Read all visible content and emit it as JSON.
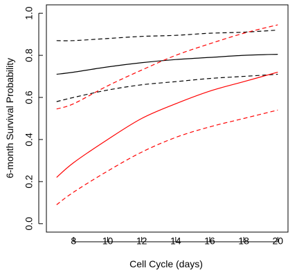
{
  "chart_data": {
    "type": "line",
    "title": "",
    "xlabel": "Cell Cycle (days)",
    "ylabel": "6-month Survival Probability",
    "xlim": [
      6.4,
      20.6
    ],
    "ylim": [
      -0.04,
      1.04
    ],
    "xticks": [
      8,
      10,
      12,
      14,
      16,
      18,
      20
    ],
    "yticks": [
      0.0,
      0.2,
      0.4,
      0.6,
      0.8,
      1.0
    ],
    "xtick_labels": [
      "8",
      "10",
      "12",
      "14",
      "16",
      "18",
      "20"
    ],
    "ytick_labels": [
      "0.0",
      "0.2",
      "0.4",
      "0.6",
      "0.8",
      "1.0"
    ],
    "grid": false,
    "legend": "none",
    "series": [
      {
        "key": "black_estimate",
        "color": "#000000",
        "style": "solid",
        "points": [
          [
            7,
            0.71
          ],
          [
            8,
            0.72
          ],
          [
            10,
            0.745
          ],
          [
            12,
            0.765
          ],
          [
            14,
            0.78
          ],
          [
            16,
            0.79
          ],
          [
            18,
            0.8
          ],
          [
            20,
            0.805
          ]
        ]
      },
      {
        "key": "black_upper",
        "color": "#000000",
        "style": "dashed",
        "points": [
          [
            7,
            0.87
          ],
          [
            8,
            0.87
          ],
          [
            10,
            0.88
          ],
          [
            12,
            0.89
          ],
          [
            14,
            0.895
          ],
          [
            16,
            0.905
          ],
          [
            18,
            0.91
          ],
          [
            20,
            0.92
          ]
        ]
      },
      {
        "key": "black_lower",
        "color": "#000000",
        "style": "dashed",
        "points": [
          [
            7,
            0.58
          ],
          [
            8,
            0.6
          ],
          [
            10,
            0.635
          ],
          [
            12,
            0.66
          ],
          [
            14,
            0.675
          ],
          [
            16,
            0.69
          ],
          [
            18,
            0.7
          ],
          [
            20,
            0.71
          ]
        ]
      },
      {
        "key": "red_estimate",
        "color": "#ff0000",
        "style": "solid",
        "points": [
          [
            7,
            0.22
          ],
          [
            8,
            0.29
          ],
          [
            10,
            0.4
          ],
          [
            12,
            0.5
          ],
          [
            14,
            0.57
          ],
          [
            16,
            0.63
          ],
          [
            18,
            0.675
          ],
          [
            20,
            0.72
          ]
        ]
      },
      {
        "key": "red_upper",
        "color": "#ff0000",
        "style": "dashed",
        "points": [
          [
            7,
            0.545
          ],
          [
            8,
            0.57
          ],
          [
            10,
            0.655
          ],
          [
            12,
            0.73
          ],
          [
            14,
            0.8
          ],
          [
            16,
            0.855
          ],
          [
            18,
            0.905
          ],
          [
            20,
            0.945
          ]
        ]
      },
      {
        "key": "red_lower",
        "color": "#ff0000",
        "style": "dashed",
        "points": [
          [
            7,
            0.09
          ],
          [
            8,
            0.15
          ],
          [
            10,
            0.25
          ],
          [
            12,
            0.34
          ],
          [
            14,
            0.41
          ],
          [
            16,
            0.46
          ],
          [
            18,
            0.5
          ],
          [
            20,
            0.54
          ]
        ]
      }
    ]
  }
}
